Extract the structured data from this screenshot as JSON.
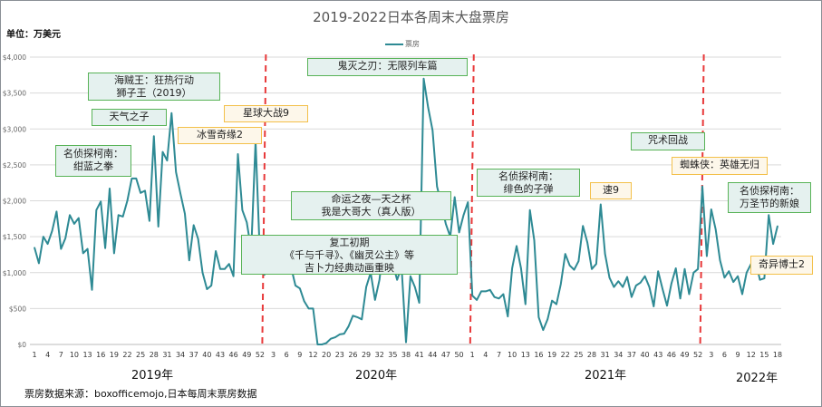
{
  "chart_data": {
    "type": "line",
    "title": "2019-2022日本各周末大盘票房",
    "unit_label": "单位：万美元",
    "ylabel": "",
    "xlabel": "",
    "ylim": [
      0,
      4000
    ],
    "y_ticks": [
      "$0",
      "$500",
      "$1,000",
      "$1,500",
      "$2,000",
      "$2,500",
      "$3,000",
      "$3,500",
      "$4,000"
    ],
    "grid": true,
    "legend": {
      "position": "top-center",
      "entries": [
        "票房"
      ]
    },
    "x_tick_labels": [
      "1",
      "4",
      "7",
      "10",
      "13",
      "16",
      "19",
      "22",
      "25",
      "28",
      "31",
      "34",
      "37",
      "40",
      "43",
      "46",
      "49",
      "52",
      "3",
      "6",
      "9",
      "12",
      "20",
      "23",
      "26",
      "29",
      "32",
      "35",
      "38",
      "41",
      "44",
      "47",
      "50",
      "1",
      "4",
      "7",
      "10",
      "13",
      "16",
      "19",
      "22",
      "25",
      "28",
      "31",
      "34",
      "37",
      "40",
      "43",
      "46",
      "49",
      "52",
      "3",
      "6",
      "9",
      "12",
      "15",
      "18"
    ],
    "year_labels": [
      "2019年",
      "2020年",
      "2021年",
      "2022年"
    ],
    "series": [
      {
        "name": "票房",
        "color": "#2e8a94",
        "values": [
          1350,
          1130,
          1500,
          1400,
          1580,
          1850,
          1330,
          1480,
          1800,
          1680,
          1760,
          1270,
          1330,
          760,
          1870,
          1990,
          1340,
          2170,
          1270,
          1800,
          1780,
          2000,
          2310,
          2310,
          2110,
          2140,
          1720,
          2900,
          1640,
          2680,
          2560,
          3220,
          2400,
          2100,
          1820,
          1170,
          1660,
          1470,
          1000,
          770,
          820,
          1300,
          1050,
          1050,
          1120,
          950,
          2650,
          1870,
          1700,
          1310,
          2830,
          1200,
          970,
          1300,
          1240,
          1230,
          1220,
          1020,
          1080,
          820,
          780,
          600,
          500,
          500,
          0,
          0,
          20,
          80,
          100,
          140,
          150,
          250,
          400,
          380,
          350,
          800,
          1000,
          620,
          900,
          1440,
          1210,
          1120,
          900,
          1080,
          30,
          950,
          800,
          580,
          3700,
          3300,
          2980,
          2200,
          1950,
          1680,
          1500,
          2050,
          1560,
          1800,
          1980,
          680,
          620,
          740,
          740,
          760,
          660,
          640,
          700,
          390,
          1060,
          1370,
          1060,
          560,
          1870,
          1450,
          380,
          200,
          350,
          610,
          560,
          840,
          1260,
          1100,
          1040,
          1160,
          1650,
          1420,
          1050,
          1120,
          1950,
          1260,
          930,
          800,
          880,
          800,
          940,
          660,
          820,
          860,
          950,
          800,
          530,
          1020,
          770,
          540,
          850,
          1060,
          640,
          1050,
          700,
          1000,
          1050,
          2200,
          1230,
          1880,
          1600,
          1170,
          930,
          1020,
          870,
          950,
          700,
          1000,
          1120,
          1170,
          900,
          920,
          1800,
          1400,
          1650
        ]
      }
    ],
    "annotations": [
      {
        "lines": [
          "海贼王：狂热行动",
          "狮子王（2019）"
        ],
        "style": "green"
      },
      {
        "lines": [
          "天气之子"
        ],
        "style": "green"
      },
      {
        "lines": [
          "名侦探柯南：",
          "绀蓝之拳"
        ],
        "style": "green"
      },
      {
        "lines": [
          "冰雪奇缘2"
        ],
        "style": "yellow"
      },
      {
        "lines": [
          "星球大战9"
        ],
        "style": "yellow"
      },
      {
        "lines": [
          "鬼灭之刃：无限列车篇"
        ],
        "style": "green"
      },
      {
        "lines": [
          "命运之夜—天之杯",
          "我是大哥大（真人版）"
        ],
        "style": "green"
      },
      {
        "lines": [
          "复工初期",
          "《千与千寻》、《幽灵公主》等",
          "吉卜力经典动画重映"
        ],
        "style": "green"
      },
      {
        "lines": [
          "名侦探柯南：",
          "绯色的子弹"
        ],
        "style": "green"
      },
      {
        "lines": [
          "速9"
        ],
        "style": "yellow"
      },
      {
        "lines": [
          "咒术回战"
        ],
        "style": "green"
      },
      {
        "lines": [
          "蜘蛛侠：英雄无归"
        ],
        "style": "yellow"
      },
      {
        "lines": [
          "名侦探柯南：",
          "万圣节的新娘"
        ],
        "style": "green"
      },
      {
        "lines": [
          "奇异博士2"
        ],
        "style": "yellow"
      }
    ],
    "year_dividers_color": "#e8393a",
    "source": "票房数据来源：boxofficemojo,日本每周末票房数据"
  }
}
